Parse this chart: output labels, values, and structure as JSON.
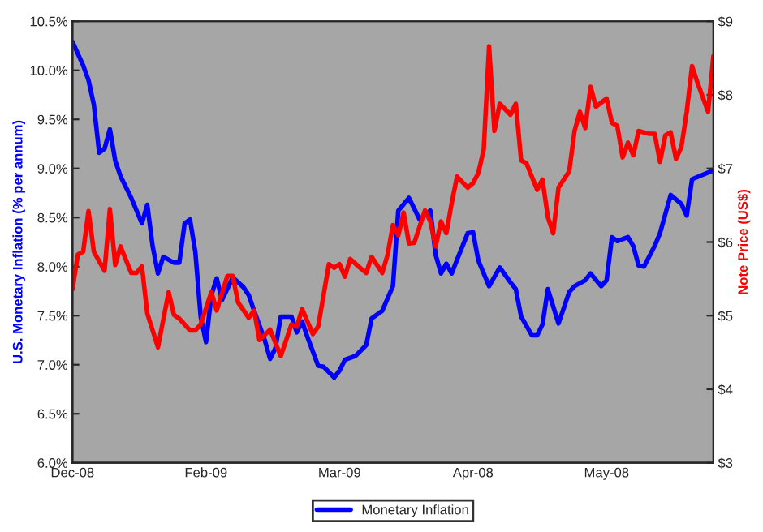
{
  "chart_data": {
    "type": "line",
    "ylabel": "U.S. Monetary Inflation (% per annum)",
    "y2label": "Note Price (US$)",
    "categories": [
      "Dec-08",
      null,
      null,
      null,
      null,
      null,
      null,
      null,
      null,
      null,
      null,
      null,
      null,
      null,
      null,
      null,
      null,
      null,
      null,
      null,
      null,
      null,
      null,
      null,
      null,
      "Feb-09",
      null,
      null,
      null,
      null,
      null,
      null,
      null,
      null,
      null,
      null,
      null,
      null,
      null,
      null,
      null,
      null,
      null,
      null,
      null,
      null,
      null,
      null,
      null,
      null,
      "Mar-09",
      null,
      null,
      null,
      null,
      null,
      null,
      null,
      null,
      null,
      null,
      null,
      null,
      null,
      null,
      null,
      null,
      null,
      null,
      null,
      null,
      null,
      null,
      null,
      null,
      "Apr-08",
      null,
      null,
      null,
      null,
      null,
      null,
      null,
      null,
      null,
      null,
      null,
      null,
      null,
      null,
      null,
      null,
      null,
      null,
      null,
      null,
      null,
      null,
      null,
      null,
      "May-08",
      null,
      null,
      null,
      null,
      null,
      null,
      null,
      null,
      null,
      null,
      null,
      null,
      null,
      null,
      null,
      null,
      null,
      null,
      null,
      null
    ],
    "ylim": [
      6.0,
      10.5
    ],
    "yticks": [
      {
        "value": 6.0,
        "label": "6.0%"
      },
      {
        "value": 6.5,
        "label": "6.5%"
      },
      {
        "value": 7.0,
        "label": "7.0%"
      },
      {
        "value": 7.5,
        "label": "7.5%"
      },
      {
        "value": 8.0,
        "label": "8.0%"
      },
      {
        "value": 8.5,
        "label": "8.5%"
      },
      {
        "value": 9.0,
        "label": "9.0%"
      },
      {
        "value": 9.5,
        "label": "9.5%"
      },
      {
        "value": 10.0,
        "label": "10.0%"
      },
      {
        "value": 10.5,
        "label": "10.5%"
      }
    ],
    "y2lim": [
      3,
      9
    ],
    "y2ticks": [
      {
        "value": 3,
        "label": "$3"
      },
      {
        "value": 4,
        "label": "$4"
      },
      {
        "value": 5,
        "label": "$5"
      },
      {
        "value": 6,
        "label": "$6"
      },
      {
        "value": 7,
        "label": "$7"
      },
      {
        "value": 8,
        "label": "$8"
      },
      {
        "value": 9,
        "label": "$9"
      }
    ],
    "grid": false,
    "legend": "bottom",
    "marker": "none",
    "line_style": "solid",
    "series": [
      {
        "name": "Monetary Inflation",
        "color": "#0000ff",
        "values": [
          10.29,
          null,
          10.05,
          9.9,
          9.65,
          9.16,
          9.2,
          9.4,
          9.08,
          8.92,
          null,
          8.7,
          null,
          8.44,
          8.63,
          8.21,
          7.93,
          8.1,
          null,
          8.04,
          8.04,
          8.44,
          8.48,
          8.15,
          7.49,
          7.23,
          7.71,
          7.88,
          7.66,
          null,
          7.89,
          null,
          7.79,
          7.71,
          7.55,
          null,
          7.25,
          7.06,
          7.17,
          7.49,
          null,
          7.49,
          7.33,
          7.44,
          7.28,
          null,
          6.99,
          6.98,
          null,
          6.87,
          6.94,
          7.05,
          null,
          7.09,
          null,
          7.2,
          7.47,
          null,
          7.55,
          null,
          7.8,
          8.57,
          null,
          8.7,
          null,
          8.48,
          null,
          8.57,
          8.12,
          7.93,
          8.03,
          7.93,
          8.07,
          null,
          8.34,
          8.35,
          8.06,
          null,
          7.8,
          null,
          7.99,
          null,
          7.84,
          7.77,
          7.49,
          null,
          7.3,
          7.3,
          7.41,
          7.77,
          null,
          7.42,
          null,
          7.74,
          7.8,
          null,
          7.86,
          7.93,
          null,
          7.8,
          7.86,
          8.3,
          8.26,
          null,
          8.3,
          8.21,
          8.01,
          8.0,
          null,
          8.21,
          8.34,
          null,
          8.73,
          null,
          8.64,
          8.52,
          8.89,
          null,
          null,
          null,
          8.98
        ]
      },
      {
        "color": "#ff0000",
        "axis": "y2",
        "values": [
          5.36,
          5.83,
          5.87,
          6.42,
          5.87,
          null,
          5.61,
          6.45,
          5.69,
          5.94,
          null,
          5.58,
          5.58,
          5.67,
          5.03,
          null,
          4.57,
          null,
          5.32,
          5.01,
          4.96,
          null,
          4.8,
          4.8,
          4.88,
          null,
          5.32,
          5.07,
          null,
          5.54,
          5.54,
          5.18,
          null,
          4.97,
          5.07,
          4.67,
          null,
          4.81,
          null,
          4.45,
          null,
          4.88,
          4.85,
          5.09,
          null,
          4.75,
          4.85,
          null,
          5.7,
          5.65,
          5.7,
          5.53,
          5.77,
          null,
          5.64,
          5.58,
          5.8,
          null,
          5.58,
          5.83,
          6.23,
          6.09,
          6.4,
          5.98,
          5.99,
          null,
          6.43,
          6.28,
          5.94,
          6.28,
          6.12,
          6.53,
          6.89,
          null,
          6.74,
          6.8,
          6.94,
          7.26,
          8.66,
          7.51,
          7.88,
          null,
          7.73,
          7.88,
          7.11,
          7.07,
          null,
          6.71,
          6.85,
          6.34,
          6.12,
          6.74,
          null,
          6.96,
          7.51,
          7.77,
          7.55,
          8.11,
          7.84,
          null,
          7.95,
          7.62,
          7.58,
          7.15,
          7.35,
          7.18,
          7.51,
          null,
          7.47,
          7.47,
          7.09,
          7.45,
          7.49,
          7.13,
          7.29,
          7.77,
          8.39,
          8.17,
          null,
          7.77,
          8.53
        ]
      }
    ]
  }
}
